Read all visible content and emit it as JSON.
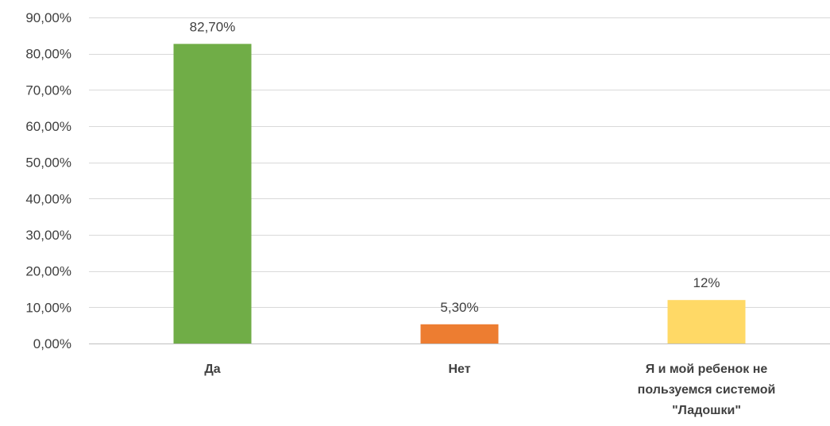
{
  "chart_data": {
    "type": "bar",
    "title": "",
    "xlabel": "",
    "ylabel": "",
    "categories": [
      [
        "Да"
      ],
      [
        "Нет"
      ],
      [
        "Я и мой ребенок не",
        "пользуемся системой",
        "\"Ладошки\""
      ]
    ],
    "values": [
      82.7,
      5.3,
      12
    ],
    "data_labels": [
      "82,70%",
      "5,30%",
      "12%"
    ],
    "colors": [
      "#70ad47",
      "#ed7d31",
      "#ffd966"
    ],
    "ylim": [
      0,
      90
    ],
    "yticks": [
      0,
      10,
      20,
      30,
      40,
      50,
      60,
      70,
      80,
      90
    ],
    "ytick_labels": [
      "0,00%",
      "10,00%",
      "20,00%",
      "30,00%",
      "40,00%",
      "50,00%",
      "60,00%",
      "70,00%",
      "80,00%",
      "90,00%"
    ],
    "grid": true,
    "legend": "none"
  }
}
